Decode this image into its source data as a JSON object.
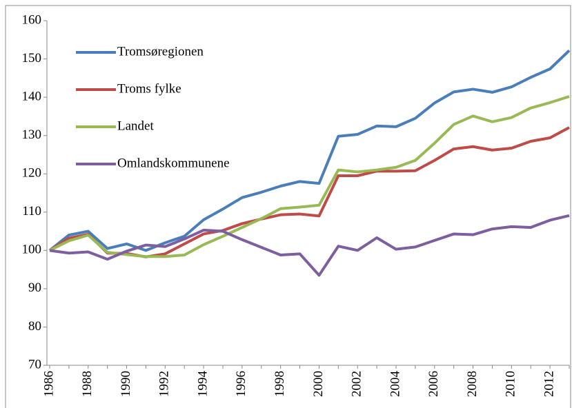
{
  "chart_data": {
    "type": "line",
    "x": [
      1986,
      1987,
      1988,
      1989,
      1990,
      1991,
      1992,
      1993,
      1994,
      1995,
      1996,
      1997,
      1998,
      1999,
      2000,
      2001,
      2002,
      2003,
      2004,
      2005,
      2006,
      2007,
      2008,
      2009,
      2010,
      2011,
      2012,
      2013
    ],
    "series": [
      {
        "name": "Tromsøregionen",
        "color": "#4a7ebb",
        "values": [
          100,
          104,
          105,
          100.5,
          101.7,
          100,
          102,
          103.7,
          108,
          110.8,
          113.8,
          115.2,
          116.8,
          118,
          117.5,
          129.8,
          130.3,
          132.5,
          132.3,
          134.5,
          138.5,
          141.4,
          142.1,
          141.3,
          142.7,
          145.2,
          147.4,
          152.2
        ]
      },
      {
        "name": "Troms fylke",
        "color": "#be4b48",
        "values": [
          100,
          103.2,
          104.2,
          99.3,
          99.2,
          98.3,
          99.1,
          101.7,
          104.3,
          105.2,
          107,
          108.2,
          109.3,
          109.5,
          109,
          119.5,
          119.5,
          120.7,
          120.7,
          120.8,
          123.5,
          126.5,
          127.1,
          126.2,
          126.7,
          128.5,
          129.4,
          132.1
        ]
      },
      {
        "name": "Landet",
        "color": "#98b954",
        "values": [
          100,
          102.5,
          104,
          99.5,
          98.9,
          98.4,
          98.4,
          98.8,
          101.5,
          103.7,
          106,
          108.3,
          110.9,
          111.3,
          111.8,
          121,
          120.5,
          121,
          121.7,
          123.5,
          128,
          132.9,
          135.1,
          133.6,
          134.7,
          137.2,
          138.6,
          140.2
        ]
      },
      {
        "name": "Omlandskommunene",
        "color": "#7d5fa0",
        "values": [
          100,
          99.3,
          99.6,
          97.7,
          99.8,
          101.4,
          101,
          103,
          105.3,
          105,
          102.8,
          100.8,
          98.8,
          99.1,
          93.5,
          101.1,
          100,
          103.3,
          100.3,
          100.9,
          102.6,
          104.3,
          104.1,
          105.6,
          106.2,
          106,
          107.9,
          109.1
        ]
      }
    ],
    "xlim": [
      1986,
      2013
    ],
    "xticks": [
      1986,
      1988,
      1990,
      1992,
      1994,
      1996,
      1998,
      2000,
      2002,
      2004,
      2006,
      2008,
      2010,
      2012
    ],
    "ylim": [
      70,
      160
    ],
    "yticks": [
      70,
      80,
      90,
      100,
      110,
      120,
      130,
      140,
      150,
      160
    ],
    "legend": "upper-left"
  }
}
